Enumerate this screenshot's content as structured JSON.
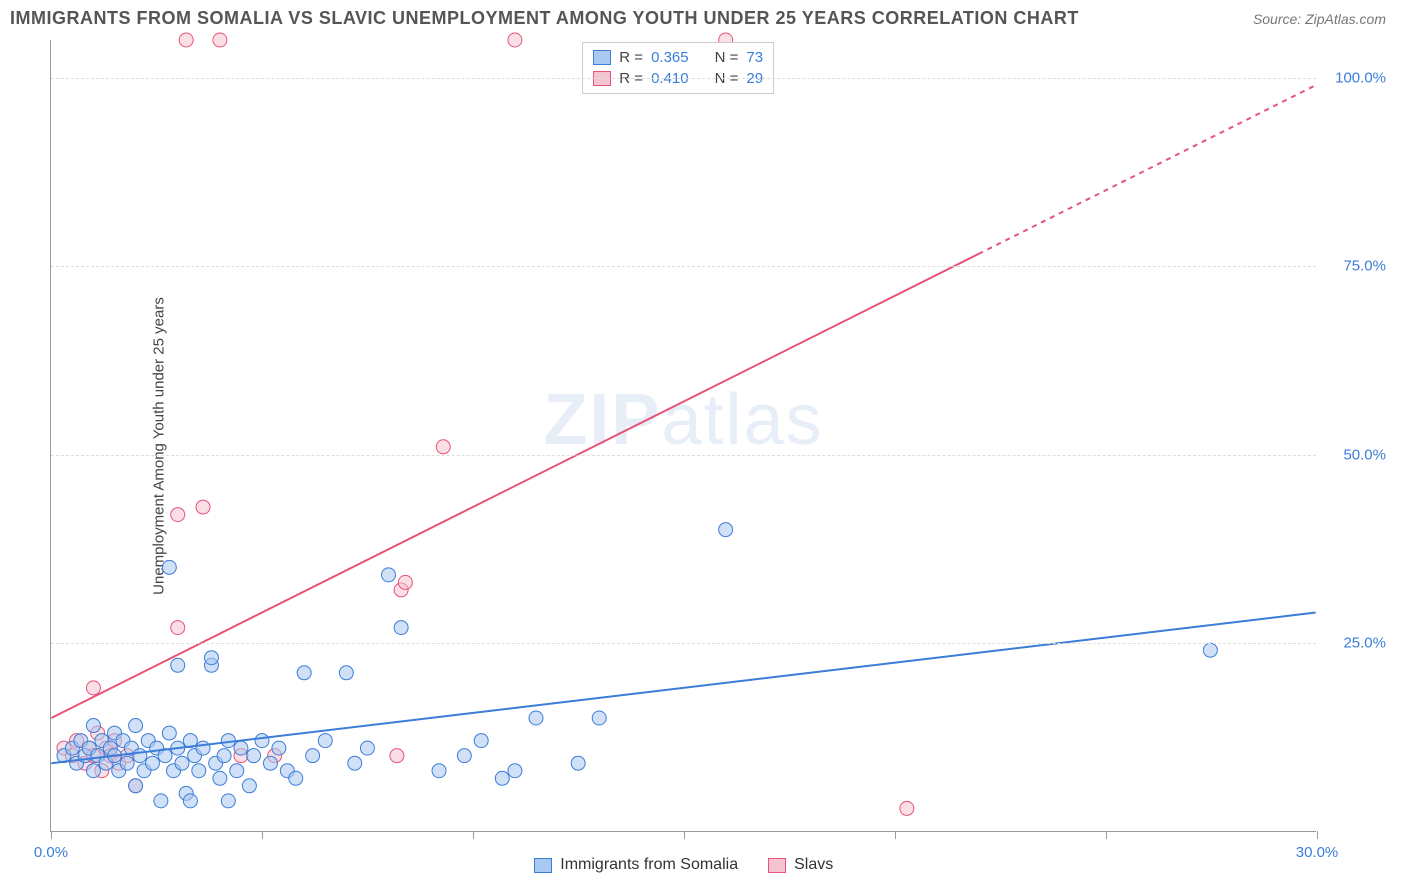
{
  "title": "IMMIGRANTS FROM SOMALIA VS SLAVIC UNEMPLOYMENT AMONG YOUTH UNDER 25 YEARS CORRELATION CHART",
  "source_label": "Source: ZipAtlas.com",
  "y_axis_label": "Unemployment Among Youth under 25 years",
  "watermark": "ZIPatlas",
  "chart": {
    "type": "scatter",
    "xlim": [
      0,
      30
    ],
    "ylim": [
      0,
      105
    ],
    "xticks": [
      0,
      5,
      10,
      15,
      20,
      25,
      30
    ],
    "xtick_labels": {
      "0": "0.0%",
      "30": "30.0%"
    },
    "yticks": [
      25,
      50,
      75,
      100
    ],
    "ytick_labels": [
      "25.0%",
      "50.0%",
      "75.0%",
      "100.0%"
    ],
    "axis_label_color": "#3b7dd8",
    "grid_color": "#dddddd",
    "background_color": "#ffffff",
    "marker_radius": 7,
    "marker_opacity": 0.55,
    "line_width": 2
  },
  "series": {
    "somalia": {
      "label": "Immigrants from Somalia",
      "fill_color": "#a9c9f0",
      "stroke_color": "#3b7dd8",
      "r_value": "0.365",
      "n_value": "73",
      "trend": {
        "x1": 0,
        "y1": 9,
        "x2": 30,
        "y2": 29,
        "dash_from_x": 30
      },
      "points": [
        [
          0.3,
          10
        ],
        [
          0.5,
          11
        ],
        [
          0.6,
          9
        ],
        [
          0.7,
          12
        ],
        [
          0.8,
          10
        ],
        [
          0.9,
          11
        ],
        [
          1.0,
          8
        ],
        [
          1.0,
          14
        ],
        [
          1.1,
          10
        ],
        [
          1.2,
          12
        ],
        [
          1.3,
          9
        ],
        [
          1.4,
          11
        ],
        [
          1.5,
          10
        ],
        [
          1.5,
          13
        ],
        [
          1.6,
          8
        ],
        [
          1.7,
          12
        ],
        [
          1.8,
          9
        ],
        [
          1.9,
          11
        ],
        [
          2.0,
          6
        ],
        [
          2.0,
          14
        ],
        [
          2.1,
          10
        ],
        [
          2.2,
          8
        ],
        [
          2.3,
          12
        ],
        [
          2.4,
          9
        ],
        [
          2.5,
          11
        ],
        [
          2.6,
          4
        ],
        [
          2.7,
          10
        ],
        [
          2.8,
          13
        ],
        [
          2.9,
          8
        ],
        [
          3.0,
          22
        ],
        [
          3.0,
          11
        ],
        [
          3.1,
          9
        ],
        [
          3.2,
          5
        ],
        [
          3.3,
          12
        ],
        [
          3.4,
          10
        ],
        [
          3.5,
          8
        ],
        [
          3.6,
          11
        ],
        [
          3.8,
          22
        ],
        [
          3.8,
          23
        ],
        [
          3.9,
          9
        ],
        [
          4.0,
          7
        ],
        [
          4.1,
          10
        ],
        [
          4.2,
          12
        ],
        [
          4.4,
          8
        ],
        [
          4.5,
          11
        ],
        [
          4.7,
          6
        ],
        [
          4.8,
          10
        ],
        [
          5.0,
          12
        ],
        [
          5.2,
          9
        ],
        [
          5.4,
          11
        ],
        [
          5.6,
          8
        ],
        [
          5.8,
          7
        ],
        [
          6.0,
          21
        ],
        [
          6.2,
          10
        ],
        [
          6.5,
          12
        ],
        [
          7.0,
          21
        ],
        [
          7.2,
          9
        ],
        [
          7.5,
          11
        ],
        [
          8.0,
          34
        ],
        [
          8.3,
          27
        ],
        [
          9.2,
          8
        ],
        [
          9.8,
          10
        ],
        [
          10.2,
          12
        ],
        [
          10.7,
          7
        ],
        [
          11.0,
          8
        ],
        [
          11.5,
          15
        ],
        [
          12.5,
          9
        ],
        [
          13.0,
          15
        ],
        [
          16.0,
          40
        ],
        [
          2.8,
          35
        ],
        [
          3.3,
          4
        ],
        [
          4.2,
          4
        ],
        [
          27.5,
          24
        ]
      ]
    },
    "slavs": {
      "label": "Slavs",
      "fill_color": "#f5c4d3",
      "stroke_color": "#e8537a",
      "r_value": "0.410",
      "n_value": "29",
      "trend": {
        "x1": 0,
        "y1": 15,
        "x2": 30,
        "y2": 99,
        "dash_from_x": 22
      },
      "points": [
        [
          0.3,
          11
        ],
        [
          0.5,
          10
        ],
        [
          0.6,
          12
        ],
        [
          0.8,
          9
        ],
        [
          0.9,
          11
        ],
        [
          1.0,
          10
        ],
        [
          1.1,
          13
        ],
        [
          1.2,
          8
        ],
        [
          1.3,
          11
        ],
        [
          1.4,
          10
        ],
        [
          1.5,
          12
        ],
        [
          1.6,
          9
        ],
        [
          1.8,
          10
        ],
        [
          2.0,
          6
        ],
        [
          1.0,
          19
        ],
        [
          3.0,
          27
        ],
        [
          3.0,
          42
        ],
        [
          3.6,
          43
        ],
        [
          3.2,
          105
        ],
        [
          4.0,
          105
        ],
        [
          5.3,
          10
        ],
        [
          8.2,
          10
        ],
        [
          8.3,
          32
        ],
        [
          8.4,
          33
        ],
        [
          9.3,
          51
        ],
        [
          11.0,
          105
        ],
        [
          16.0,
          105
        ],
        [
          20.3,
          3
        ],
        [
          4.5,
          10
        ]
      ]
    }
  },
  "legend_top": {
    "r_label": "R =",
    "n_label": "N =",
    "value_color": "#3b7dd8",
    "text_color": "#444444"
  }
}
